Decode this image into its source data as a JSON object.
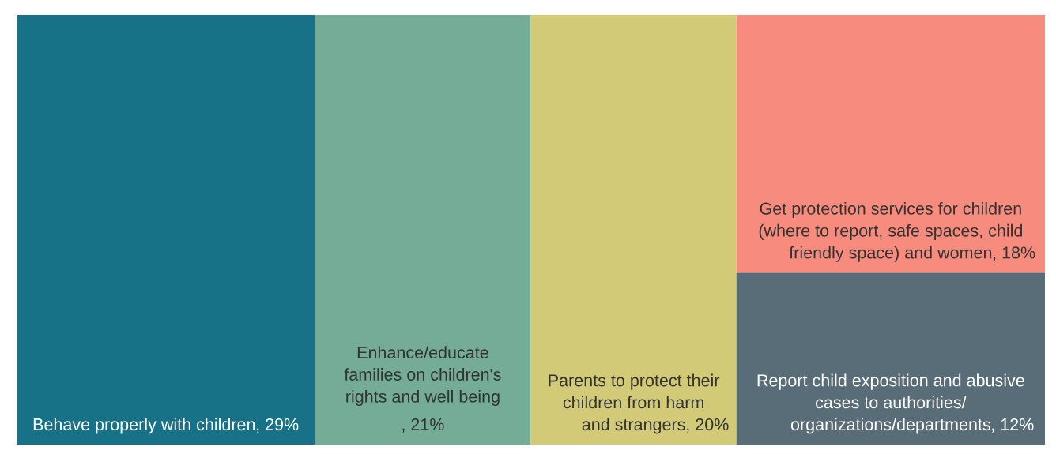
{
  "chart_data": {
    "type": "other",
    "categories": [
      "Behave properly with children",
      "Enhance/educate families on children's rights and well being",
      "Parents to protect their children from harm and strangers",
      "Get protection services for children (where to report, safe spaces, child friendly space) and women",
      "Report child exposition and abusive cases to authorities/ organizations/departments"
    ],
    "values": [
      29,
      21,
      20,
      18,
      12
    ],
    "value_labels": [
      ", 29%",
      ", 21%",
      ", 20%",
      ", 18%",
      ", 12%"
    ],
    "colors": [
      "#177287",
      "#74ac98",
      "#d3ca78",
      "#f78b7e",
      "#596d79"
    ]
  }
}
